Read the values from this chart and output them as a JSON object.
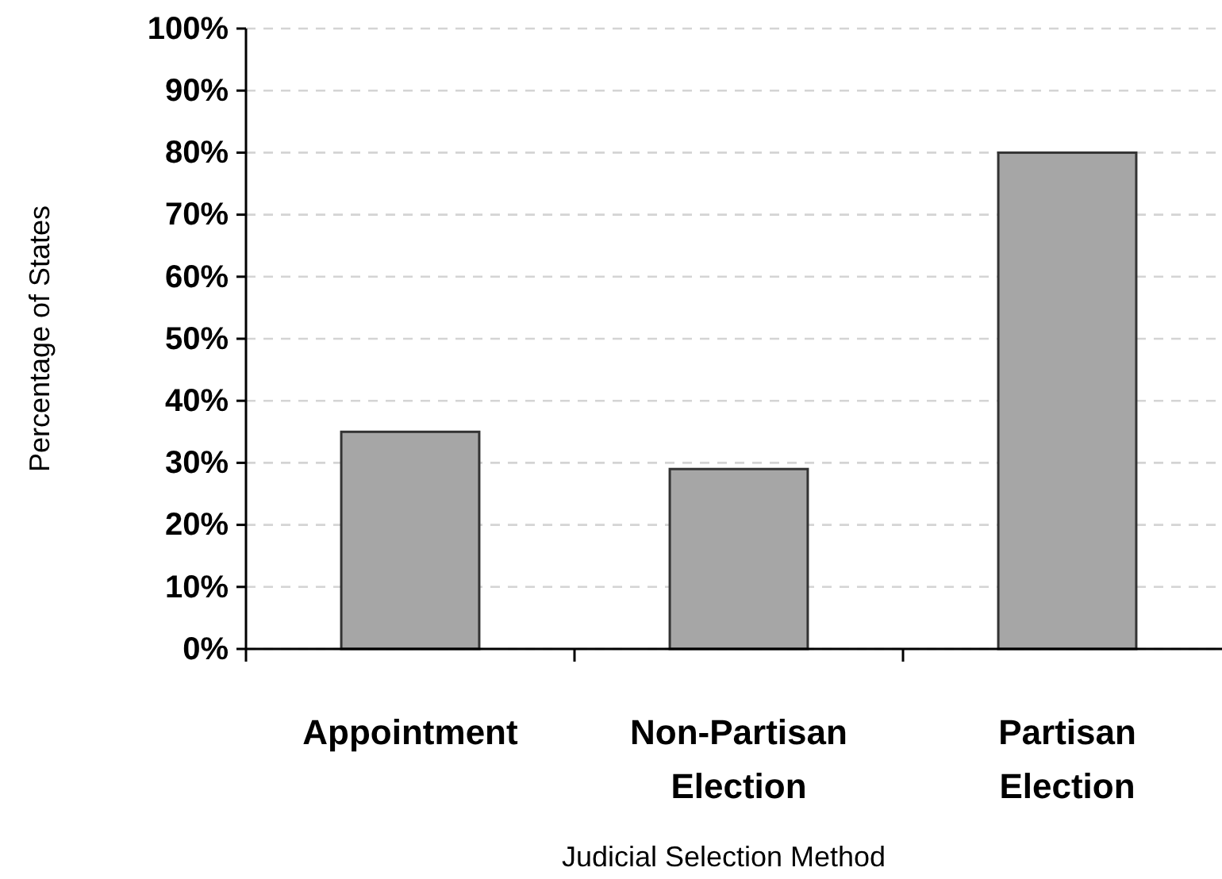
{
  "chart_data": {
    "type": "bar",
    "xlabel": "Judicial Selection Method",
    "ylabel": "Percentage of States",
    "categories": [
      "Appointment",
      "Non-Partisan Election",
      "Partisan Election"
    ],
    "values": [
      35,
      29,
      80
    ],
    "color": "#a6a6a6",
    "ylim": [
      0,
      100
    ],
    "yticks": [
      {
        "value": 0,
        "label": "0%"
      },
      {
        "value": 10,
        "label": "10%"
      },
      {
        "value": 20,
        "label": "20%"
      },
      {
        "value": 30,
        "label": "30%"
      },
      {
        "value": 40,
        "label": "40%"
      },
      {
        "value": 50,
        "label": "50%"
      },
      {
        "value": 60,
        "label": "60%"
      },
      {
        "value": 70,
        "label": "70%"
      },
      {
        "value": 80,
        "label": "80%"
      },
      {
        "value": 90,
        "label": "90%"
      },
      {
        "value": 100,
        "label": "100%"
      }
    ],
    "grid": "y"
  }
}
